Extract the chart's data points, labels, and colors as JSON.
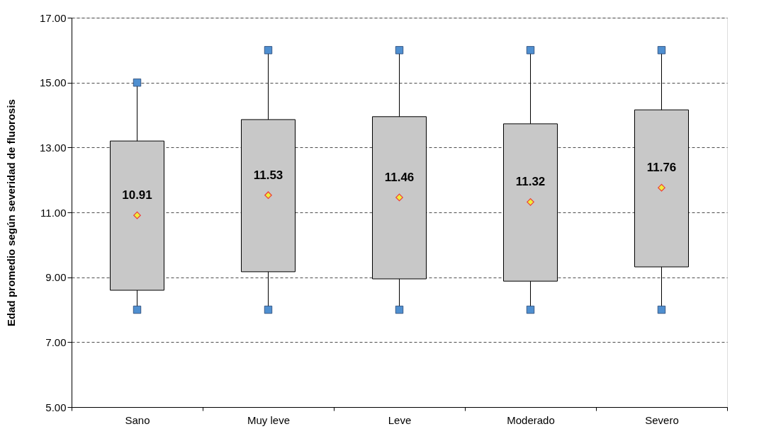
{
  "chart_data": {
    "type": "box",
    "ylabel": "Edad promedio según severidad de fluorosis",
    "categories": [
      "Sano",
      "Muy leve",
      "Leve",
      "Moderado",
      "Severo"
    ],
    "series": [
      {
        "color": "#c8c8c8",
        "boxes": [
          {
            "low": 8,
            "q1": 8.6,
            "q3": 13.2,
            "high": 15,
            "mean": 10.91
          },
          {
            "low": 8,
            "q1": 9.17,
            "q3": 13.86,
            "high": 16,
            "mean": 11.53
          },
          {
            "low": 8,
            "q1": 8.95,
            "q3": 13.95,
            "high": 16,
            "mean": 11.46
          },
          {
            "low": 8,
            "q1": 8.88,
            "q3": 13.73,
            "high": 16,
            "mean": 11.32
          },
          {
            "low": 8,
            "q1": 9.32,
            "q3": 14.16,
            "high": 16,
            "mean": 11.76
          }
        ]
      },
      {
        "type": "scatter",
        "color": "#4f8fd0",
        "marker": "square",
        "x": [
          "Sano",
          "Muy leve",
          "Leve",
          "Moderado",
          "Severo"
        ],
        "values": [
          8,
          8,
          8,
          8,
          8
        ]
      },
      {
        "type": "scatter",
        "color": "#4f8fd0",
        "marker": "square",
        "x": [
          "Sano",
          "Muy leve",
          "Leve",
          "Moderado",
          "Severo"
        ],
        "values": [
          15,
          16,
          16,
          16,
          16
        ]
      }
    ],
    "ylim": [
      5,
      17
    ],
    "yticks": [
      {
        "value": 5,
        "label": "5.00"
      },
      {
        "value": 7,
        "label": "7.00"
      },
      {
        "value": 9,
        "label": "9.00"
      },
      {
        "value": 11,
        "label": "11.00"
      },
      {
        "value": 13,
        "label": "13.00"
      },
      {
        "value": 15,
        "label": "15.00"
      },
      {
        "value": 17,
        "label": "17.00"
      }
    ],
    "grid": "y",
    "annotations": [
      {
        "text": "10.91",
        "x": "Sano",
        "y": 10.91
      },
      {
        "text": "11.53",
        "x": "Muy leve",
        "y": 11.53
      },
      {
        "text": "11.46",
        "x": "Leve",
        "y": 11.46
      },
      {
        "text": "11.32",
        "x": "Moderado",
        "y": 11.32
      },
      {
        "text": "11.76",
        "x": "Severo",
        "y": 11.76
      }
    ]
  }
}
